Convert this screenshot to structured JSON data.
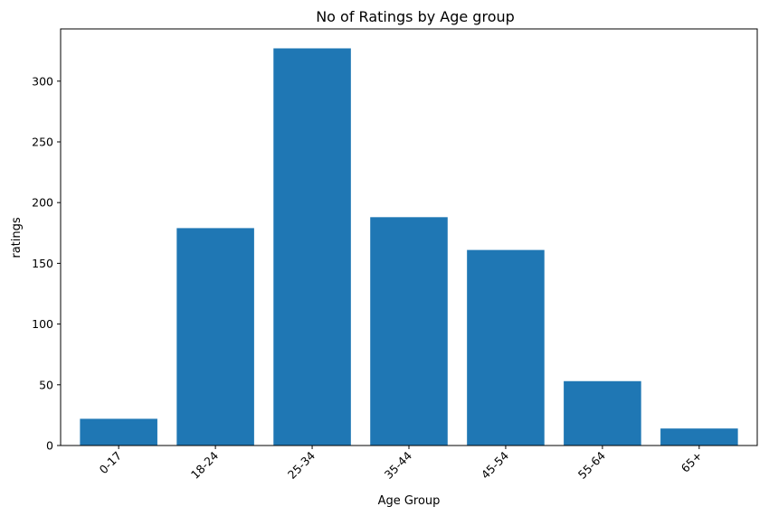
{
  "chart_data": {
    "type": "bar",
    "title": "No of Ratings by Age group",
    "xlabel": "Age Group",
    "ylabel": "ratings",
    "categories": [
      "0-17",
      "18-24",
      "25-34",
      "35-44",
      "45-54",
      "55-64",
      "65+"
    ],
    "values": [
      22,
      179,
      327,
      188,
      161,
      53,
      14
    ],
    "ylim": [
      0,
      343
    ],
    "yticks": [
      0,
      50,
      100,
      150,
      200,
      250,
      300
    ],
    "grid": false,
    "legend": "none",
    "x_tick_rotation_deg": 45,
    "bar_color": "#1f77b4"
  }
}
